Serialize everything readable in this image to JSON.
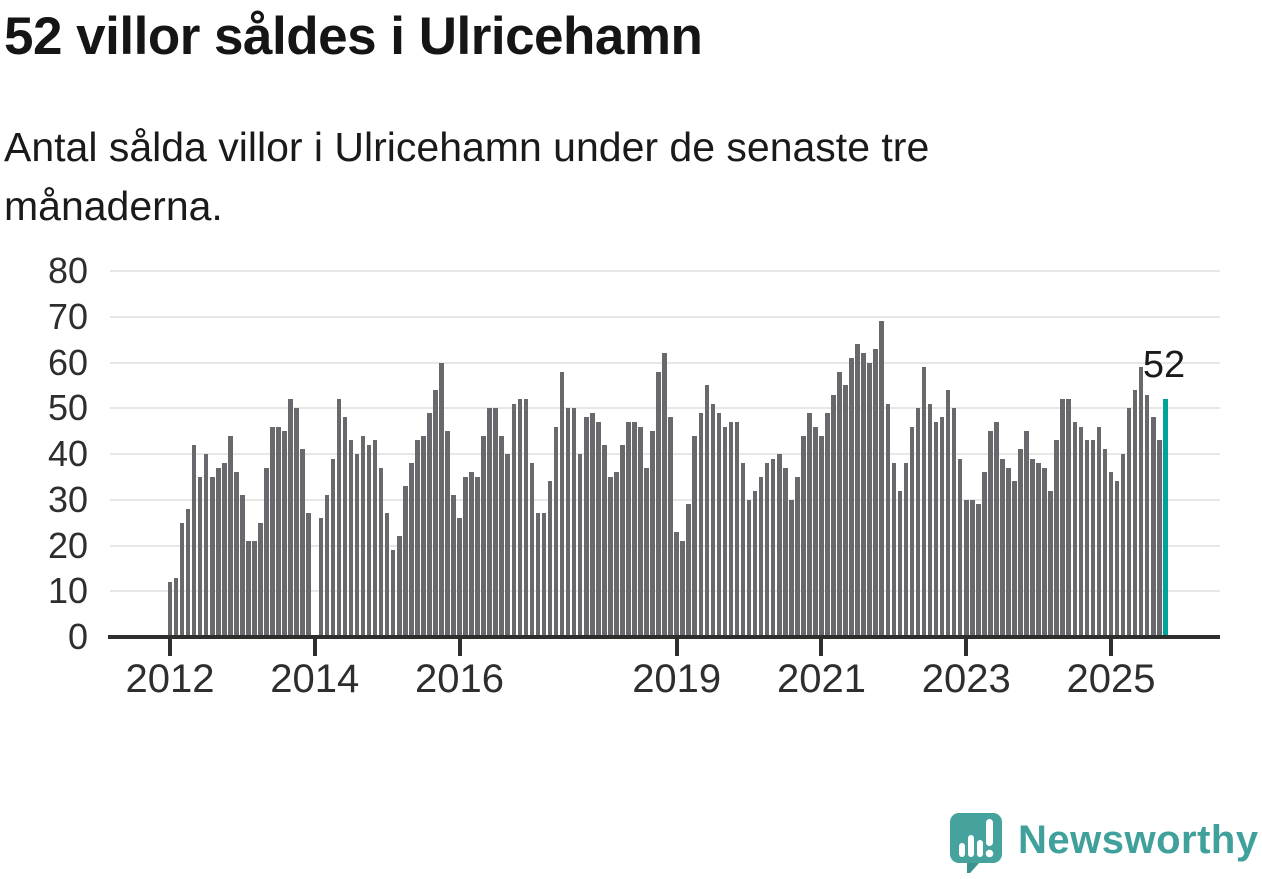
{
  "header": {
    "title": "52 villor såldes i Ulricehamn",
    "subtitle": "Antal sålda villor i Ulricehamn under de senaste tre månaderna."
  },
  "chart_data": {
    "type": "bar",
    "title": "52 villor såldes i Ulricehamn",
    "subtitle": "Antal sålda villor i Ulricehamn under de senaste tre månaderna.",
    "ylim": [
      0,
      80
    ],
    "y_ticks": [
      0,
      10,
      20,
      30,
      40,
      50,
      60,
      70,
      80
    ],
    "grid": "horizontal",
    "legend": "none",
    "x_ticks": [
      {
        "label": "2012",
        "month_index": 0
      },
      {
        "label": "2014",
        "month_index": 24
      },
      {
        "label": "2016",
        "month_index": 48
      },
      {
        "label": "2019",
        "month_index": 84
      },
      {
        "label": "2021",
        "month_index": 108
      },
      {
        "label": "2023",
        "month_index": 132
      },
      {
        "label": "2025",
        "month_index": 156
      }
    ],
    "values": [
      12,
      13,
      25,
      28,
      42,
      35,
      40,
      35,
      37,
      38,
      44,
      36,
      31,
      21,
      21,
      25,
      37,
      46,
      46,
      45,
      52,
      50,
      41,
      27,
      null,
      26,
      31,
      39,
      52,
      48,
      43,
      40,
      44,
      42,
      43,
      37,
      27,
      19,
      22,
      33,
      38,
      43,
      44,
      49,
      54,
      60,
      45,
      31,
      26,
      35,
      36,
      35,
      44,
      50,
      50,
      44,
      40,
      51,
      52,
      52,
      38,
      27,
      27,
      34,
      46,
      58,
      50,
      50,
      40,
      48,
      49,
      47,
      42,
      35,
      36,
      42,
      47,
      47,
      46,
      37,
      45,
      58,
      62,
      48,
      23,
      21,
      29,
      44,
      49,
      55,
      51,
      49,
      46,
      47,
      47,
      38,
      30,
      32,
      35,
      38,
      39,
      40,
      37,
      30,
      35,
      44,
      49,
      46,
      44,
      49,
      53,
      58,
      55,
      61,
      64,
      62,
      60,
      63,
      69,
      51,
      38,
      32,
      38,
      46,
      50,
      59,
      51,
      47,
      48,
      54,
      50,
      39,
      30,
      30,
      29,
      36,
      45,
      47,
      39,
      37,
      34,
      41,
      45,
      39,
      38,
      37,
      32,
      43,
      52,
      52,
      47,
      46,
      43,
      43,
      46,
      41,
      36,
      34,
      40,
      50,
      54,
      59,
      53,
      48,
      43,
      52
    ],
    "highlight_index": 165,
    "annotation": {
      "text": "52",
      "applies_to": "last-bar"
    },
    "colors": {
      "bar": "#68686d",
      "highlight": "#00a39a",
      "gridline": "#e7e7e7",
      "axis": "#2e2e2e",
      "label": "#2e2e2e"
    }
  },
  "footer": {
    "logo_text": "Newsworthy",
    "logo_color": "#45a29c"
  }
}
